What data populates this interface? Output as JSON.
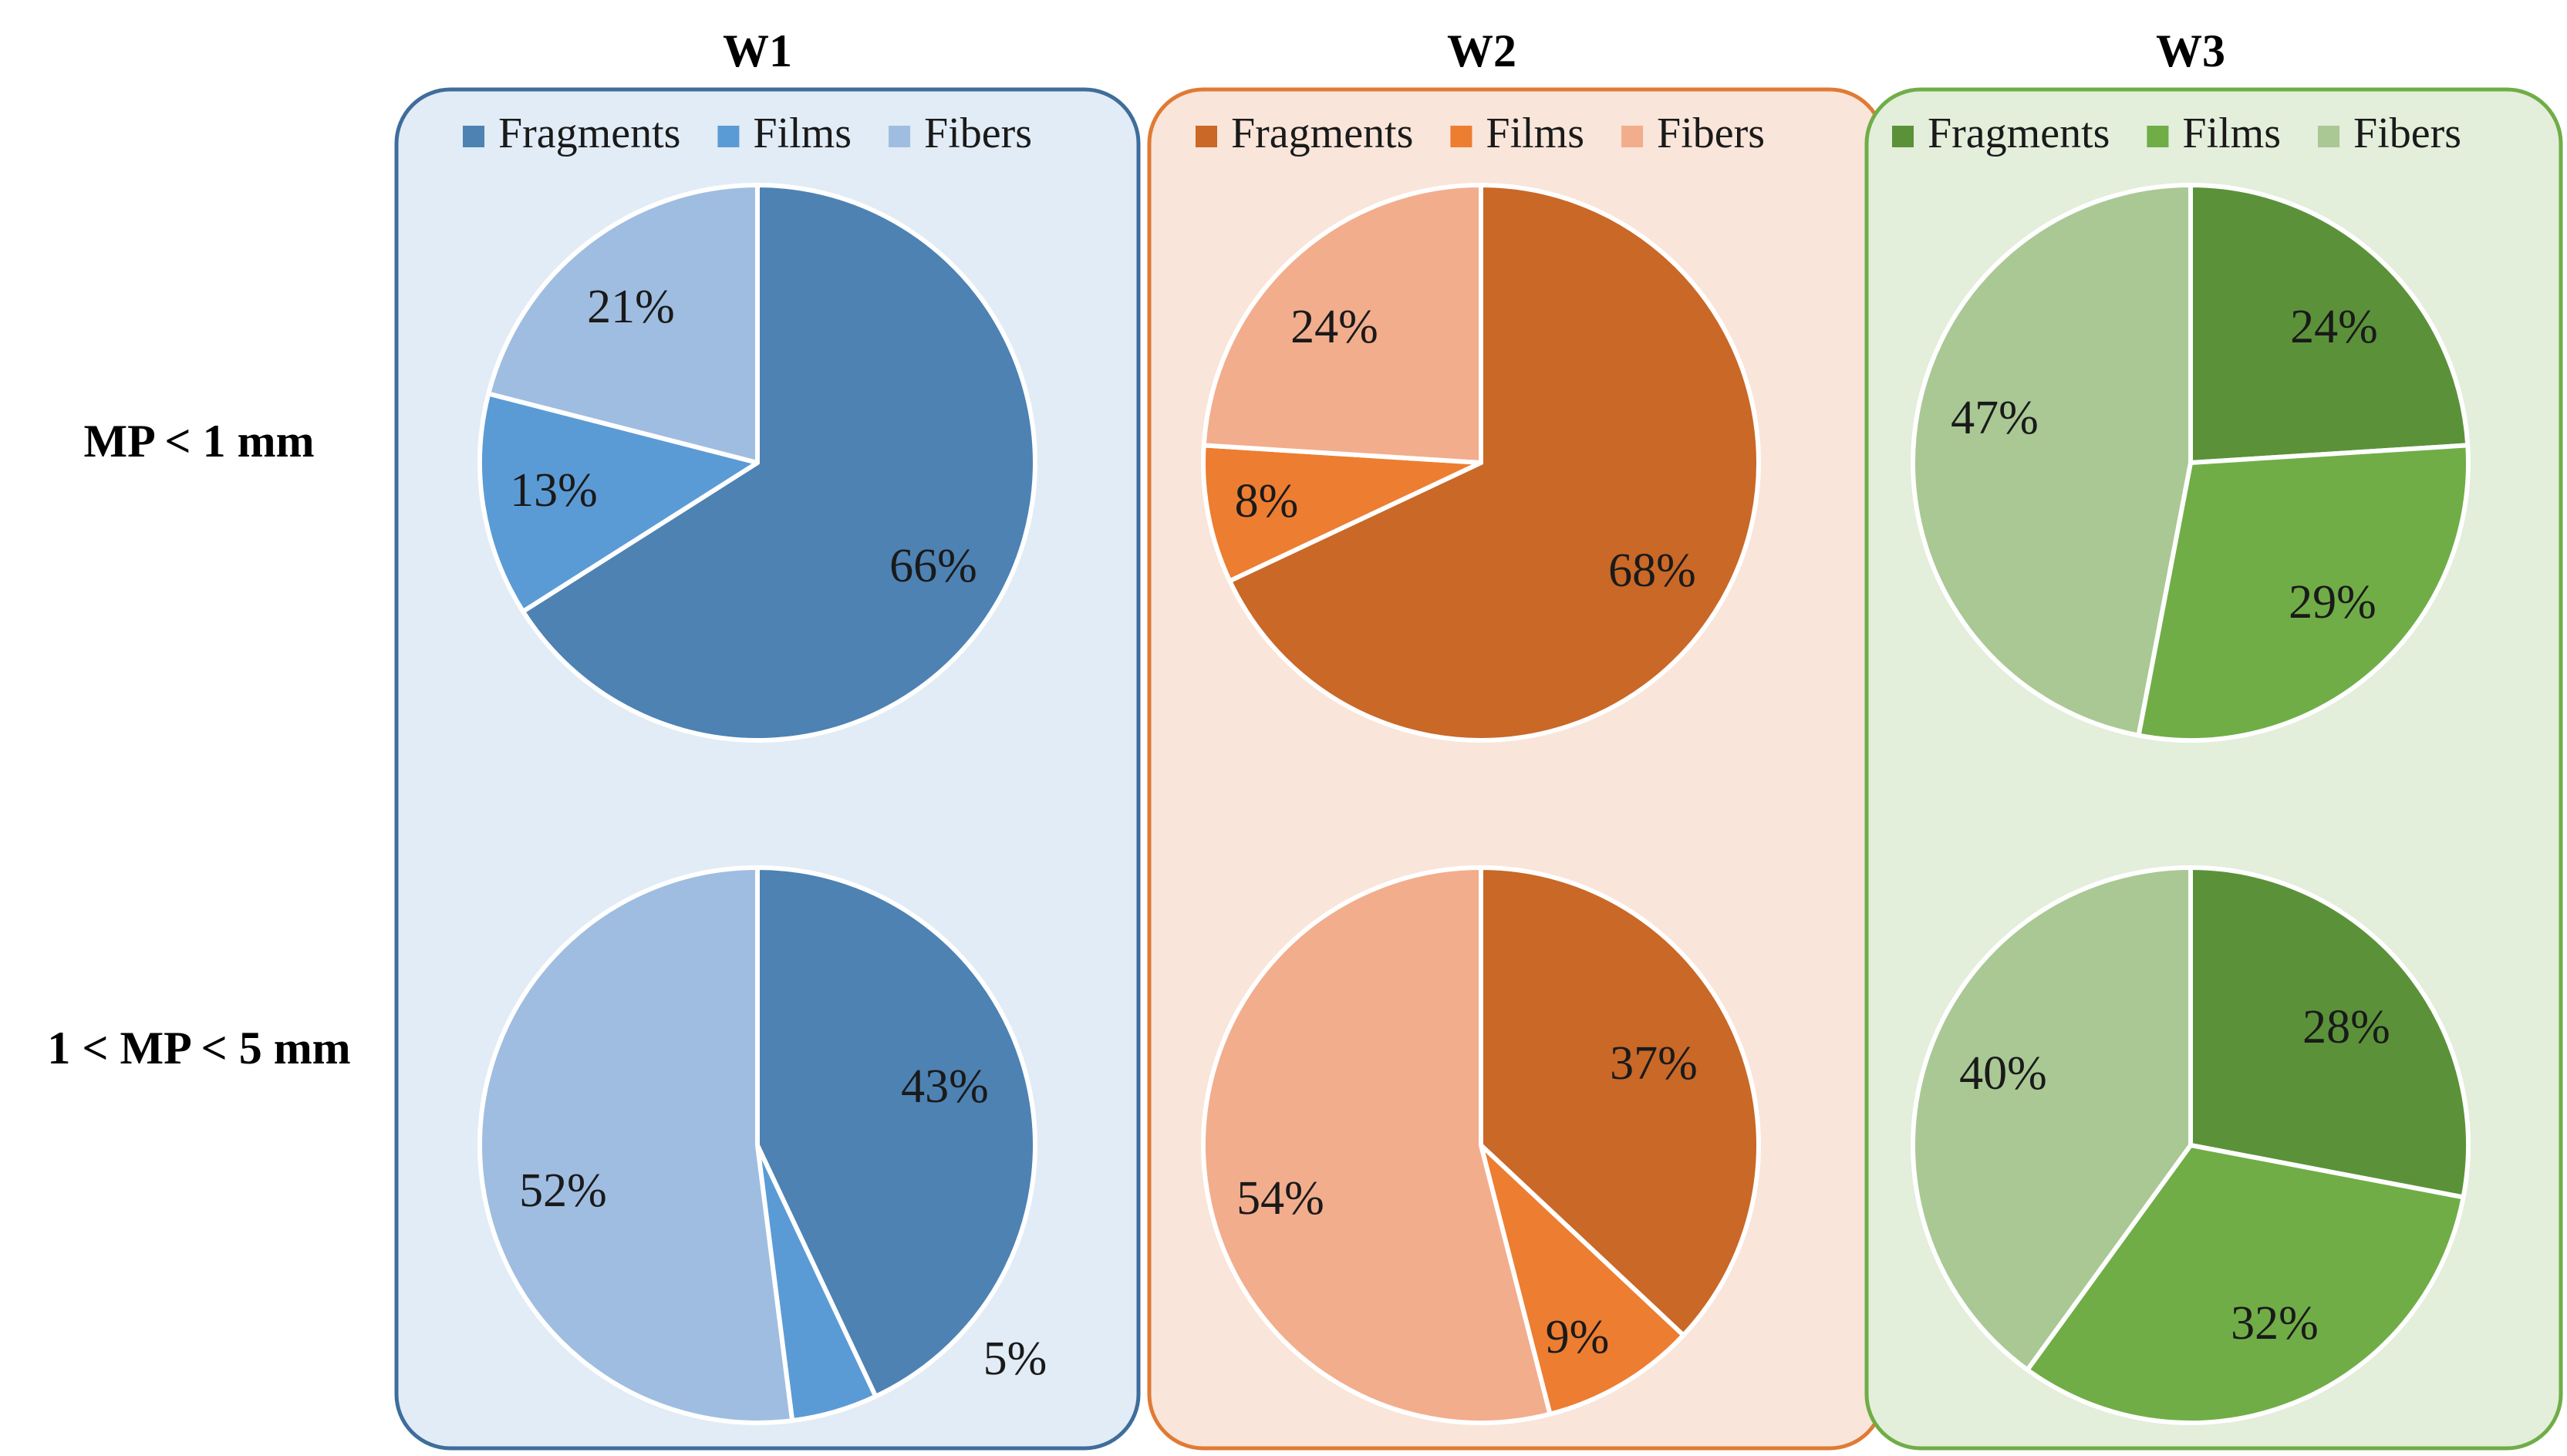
{
  "row_labels": [
    "MP < 1 mm",
    "1 < MP < 5 mm"
  ],
  "chart_data": [
    {
      "type": "pie",
      "title": "W1",
      "legend": [
        "Fragments",
        "Films",
        "Fibers"
      ],
      "colors": {
        "Fragments": "#4d82b3",
        "Films": "#5b9bd5",
        "Fibers": "#9fbde0"
      },
      "panel_fill": "#e1ecf6",
      "panel_stroke": "#3f6d9b",
      "pies": [
        {
          "row": "MP < 1 mm",
          "values": [
            66,
            13,
            21
          ],
          "labels": [
            "66%",
            "13%",
            "21%"
          ]
        },
        {
          "row": "1 < MP < 5 mm",
          "values": [
            43,
            5,
            52
          ],
          "labels": [
            "43%",
            "5%",
            "52%"
          ]
        }
      ]
    },
    {
      "type": "pie",
      "title": "W2",
      "legend": [
        "Fragments",
        "Films",
        "Fibers"
      ],
      "colors": {
        "Fragments": "#c96827",
        "Films": "#ed7d31",
        "Fibers": "#f2ad8d"
      },
      "panel_fill": "#f9e5d9",
      "panel_stroke": "#e07a35",
      "pies": [
        {
          "row": "MP < 1 mm",
          "values": [
            68,
            8,
            24
          ],
          "labels": [
            "68%",
            "8%",
            "24%"
          ]
        },
        {
          "row": "1 < MP < 5 mm",
          "values": [
            37,
            9,
            54
          ],
          "labels": [
            "37%",
            "9%",
            "54%"
          ]
        }
      ]
    },
    {
      "type": "pie",
      "title": "W3",
      "legend": [
        "Fragments",
        "Films",
        "Fibers"
      ],
      "colors": {
        "Fragments": "#5b9239",
        "Films": "#70ad47",
        "Fibers": "#a9c894"
      },
      "panel_fill": "#e3eedb",
      "panel_stroke": "#70ad47",
      "pies": [
        {
          "row": "MP < 1 mm",
          "values": [
            24,
            29,
            47
          ],
          "labels": [
            "24%",
            "29%",
            "47%"
          ]
        },
        {
          "row": "1 < MP < 5 mm",
          "values": [
            28,
            32,
            40
          ],
          "labels": [
            "28%",
            "32%",
            "40%"
          ]
        }
      ]
    }
  ]
}
